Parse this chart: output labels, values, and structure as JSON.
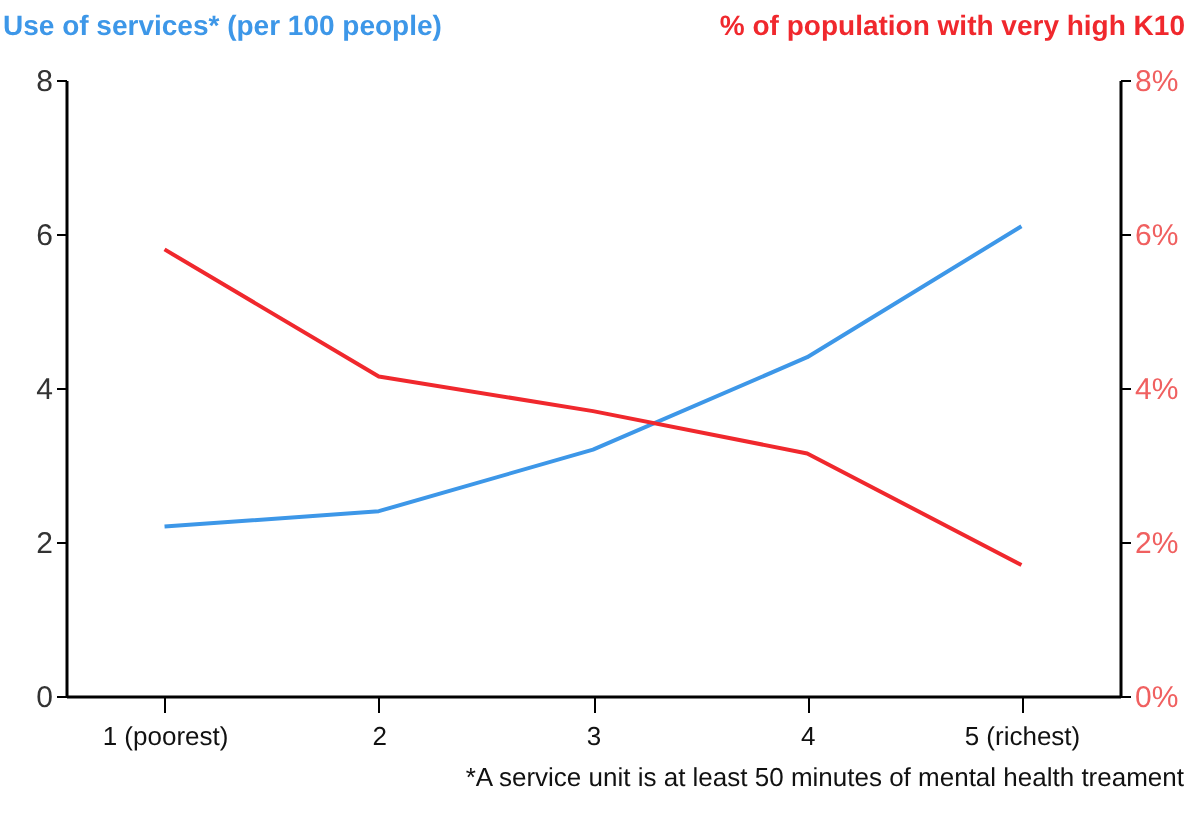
{
  "chart_data": {
    "type": "line",
    "ylabel": "Use of services* (per 100 people)",
    "y2label": "% of population with very high K10",
    "categories": [
      "1 (poorest)",
      "2",
      "3",
      "4",
      "5 (richest)"
    ],
    "series": [
      {
        "color": "#3d97e8",
        "values": [
          2.2,
          2.4,
          3.2,
          4.4,
          6.1
        ]
      },
      {
        "color": "#f0282d",
        "axis": "y2",
        "values": [
          5.8,
          4.15,
          3.7,
          3.15,
          1.7
        ]
      }
    ],
    "ylim": [
      0,
      8
    ],
    "yticks": [
      0,
      2,
      4,
      6,
      8
    ],
    "y2lim": [
      0,
      8
    ],
    "y2ticks": [
      {
        "value": 0,
        "label": "0%"
      },
      {
        "value": 2,
        "label": "2%"
      },
      {
        "value": 4,
        "label": "4%"
      },
      {
        "value": 6,
        "label": "6%"
      },
      {
        "value": 8,
        "label": "8%"
      }
    ],
    "annotations": [
      "*A service unit is at least 50 minutes of mental health treament"
    ]
  }
}
